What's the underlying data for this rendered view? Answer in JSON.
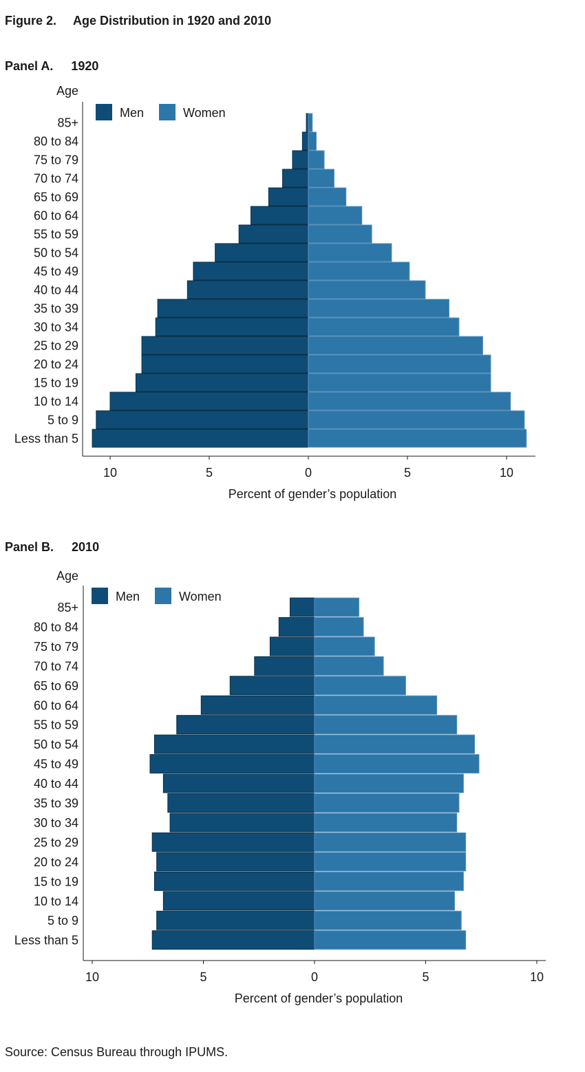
{
  "figure": {
    "label": "Figure 2.",
    "title": "Age Distribution in 1920 and 2010"
  },
  "source": "Source: Census Bureau through IPUMS.",
  "colors": {
    "men": "#0f4c75",
    "women": "#2c76a8",
    "axis": "#1a1a1a"
  },
  "chart_data": [
    {
      "type": "bar",
      "orientation": "horizontal-population-pyramid",
      "panel_label": "Panel A.",
      "panel_year": "1920",
      "ylabel": "Age",
      "xlabel": "Percent of gender’s population",
      "xlim": [
        -11,
        11
      ],
      "xticks": [
        -10,
        -5,
        0,
        5,
        10
      ],
      "xtick_labels": [
        "10",
        "5",
        "0",
        "5",
        "10"
      ],
      "legend_placement": "top-left",
      "grid": false,
      "categories": [
        "85+",
        "80 to 84",
        "75 to 79",
        "70 to 74",
        "65 to 69",
        "60 to 64",
        "55 to 59",
        "50 to 54",
        "45 to 49",
        "40 to 44",
        "35 to 39",
        "30 to 34",
        "25 to 29",
        "20 to 24",
        "15 to 19",
        "10 to 14",
        "5 to 9",
        "Less than 5"
      ],
      "series": [
        {
          "name": "Men",
          "values": [
            0.1,
            0.3,
            0.8,
            1.3,
            2.0,
            2.9,
            3.5,
            4.7,
            5.8,
            6.1,
            7.6,
            7.7,
            8.4,
            8.4,
            8.7,
            10.0,
            10.7,
            10.9
          ]
        },
        {
          "name": "Women",
          "values": [
            0.2,
            0.4,
            0.8,
            1.3,
            1.9,
            2.7,
            3.2,
            4.2,
            5.1,
            5.9,
            7.1,
            7.6,
            8.8,
            9.2,
            9.2,
            10.2,
            10.9,
            11.0
          ]
        }
      ]
    },
    {
      "type": "bar",
      "orientation": "horizontal-population-pyramid",
      "panel_label": "Panel B.",
      "panel_year": "2010",
      "ylabel": "Age",
      "xlabel": "Percent of gender’s population",
      "xlim": [
        -10,
        10
      ],
      "xticks": [
        -10,
        -5,
        0,
        5,
        10
      ],
      "xtick_labels": [
        "10",
        "5",
        "0",
        "5",
        "10"
      ],
      "legend_placement": "top-left",
      "grid": false,
      "categories": [
        "85+",
        "80 to 84",
        "75 to 79",
        "70 to 74",
        "65 to 69",
        "60 to 64",
        "55 to 59",
        "50 to 54",
        "45 to 49",
        "40 to 44",
        "35 to 39",
        "30 to 34",
        "25 to 29",
        "20 to 24",
        "15 to 19",
        "10 to 14",
        "5 to 9",
        "Less than 5"
      ],
      "series": [
        {
          "name": "Men",
          "values": [
            1.1,
            1.6,
            2.0,
            2.7,
            3.8,
            5.1,
            6.2,
            7.2,
            7.4,
            6.8,
            6.6,
            6.5,
            7.3,
            7.1,
            7.2,
            6.8,
            7.1,
            7.3
          ]
        },
        {
          "name": "Women",
          "values": [
            2.0,
            2.2,
            2.7,
            3.1,
            4.1,
            5.5,
            6.4,
            7.2,
            7.4,
            6.7,
            6.5,
            6.4,
            6.8,
            6.8,
            6.7,
            6.3,
            6.6,
            6.8
          ]
        }
      ]
    }
  ]
}
